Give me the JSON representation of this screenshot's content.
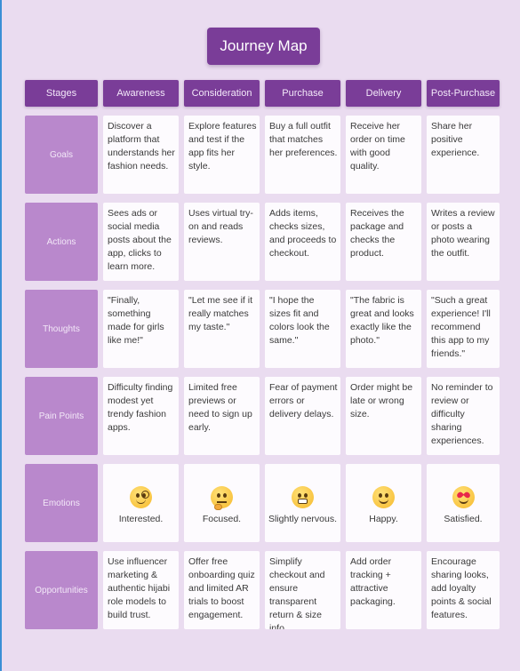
{
  "title": "Journey Map",
  "columns": [
    "Stages",
    "Awareness",
    "Consideration",
    "Purchase",
    "Delivery",
    "Post-Purchase"
  ],
  "rows": [
    {
      "label": "Goals",
      "cells": [
        "Discover a platform that understands her fashion needs.",
        "Explore features and test if the app fits her style.",
        "Buy a full outfit that matches her preferences.",
        "Receive her order on time with good quality.",
        "Share her positive experience."
      ]
    },
    {
      "label": "Actions",
      "cells": [
        "Sees ads or social media posts about the app, clicks to learn more.",
        "Uses virtual try-on and reads reviews.",
        "Adds items, checks sizes, and proceeds to checkout.",
        "Receives the package and checks the product.",
        "Writes a review or posts a photo wearing the outfit."
      ]
    },
    {
      "label": "Thoughts",
      "cells": [
        "\"Finally, something made for girls like me!\"",
        "\"Let me see if it really matches my taste.\"",
        "\"I hope the sizes fit and colors look the same.\"",
        "\"The fabric is great and looks exactly like the photo.\"",
        "\"Such a great experience! I'll recommend this app to my friends.\""
      ]
    },
    {
      "label": "Pain Points",
      "cells": [
        "Difficulty finding modest yet trendy fashion apps.",
        "Limited free previews or need to sign up early.",
        "Fear of payment errors or delivery delays.",
        "Order might be late or wrong size.",
        "No reminder to review or difficulty sharing experiences."
      ]
    },
    {
      "label": "Emotions",
      "emotions": [
        {
          "icon": "face-with-monocle-icon",
          "label": "Interested."
        },
        {
          "icon": "thinking-face-icon",
          "label": "Focused."
        },
        {
          "icon": "grimacing-face-icon",
          "label": "Slightly nervous."
        },
        {
          "icon": "smiling-face-icon",
          "label": "Happy."
        },
        {
          "icon": "heart-eyes-face-icon",
          "label": "Satisfied."
        }
      ]
    },
    {
      "label": "Opportunities",
      "cells": [
        "Use influencer marketing & authentic hijabi role models to build trust.",
        "Offer free onboarding quiz and limited AR trials to boost engagement.",
        "Simplify checkout and ensure transparent return & size info.",
        "Add order tracking + attractive packaging.",
        "Encourage sharing looks, add loyalty points & social features."
      ]
    }
  ]
}
